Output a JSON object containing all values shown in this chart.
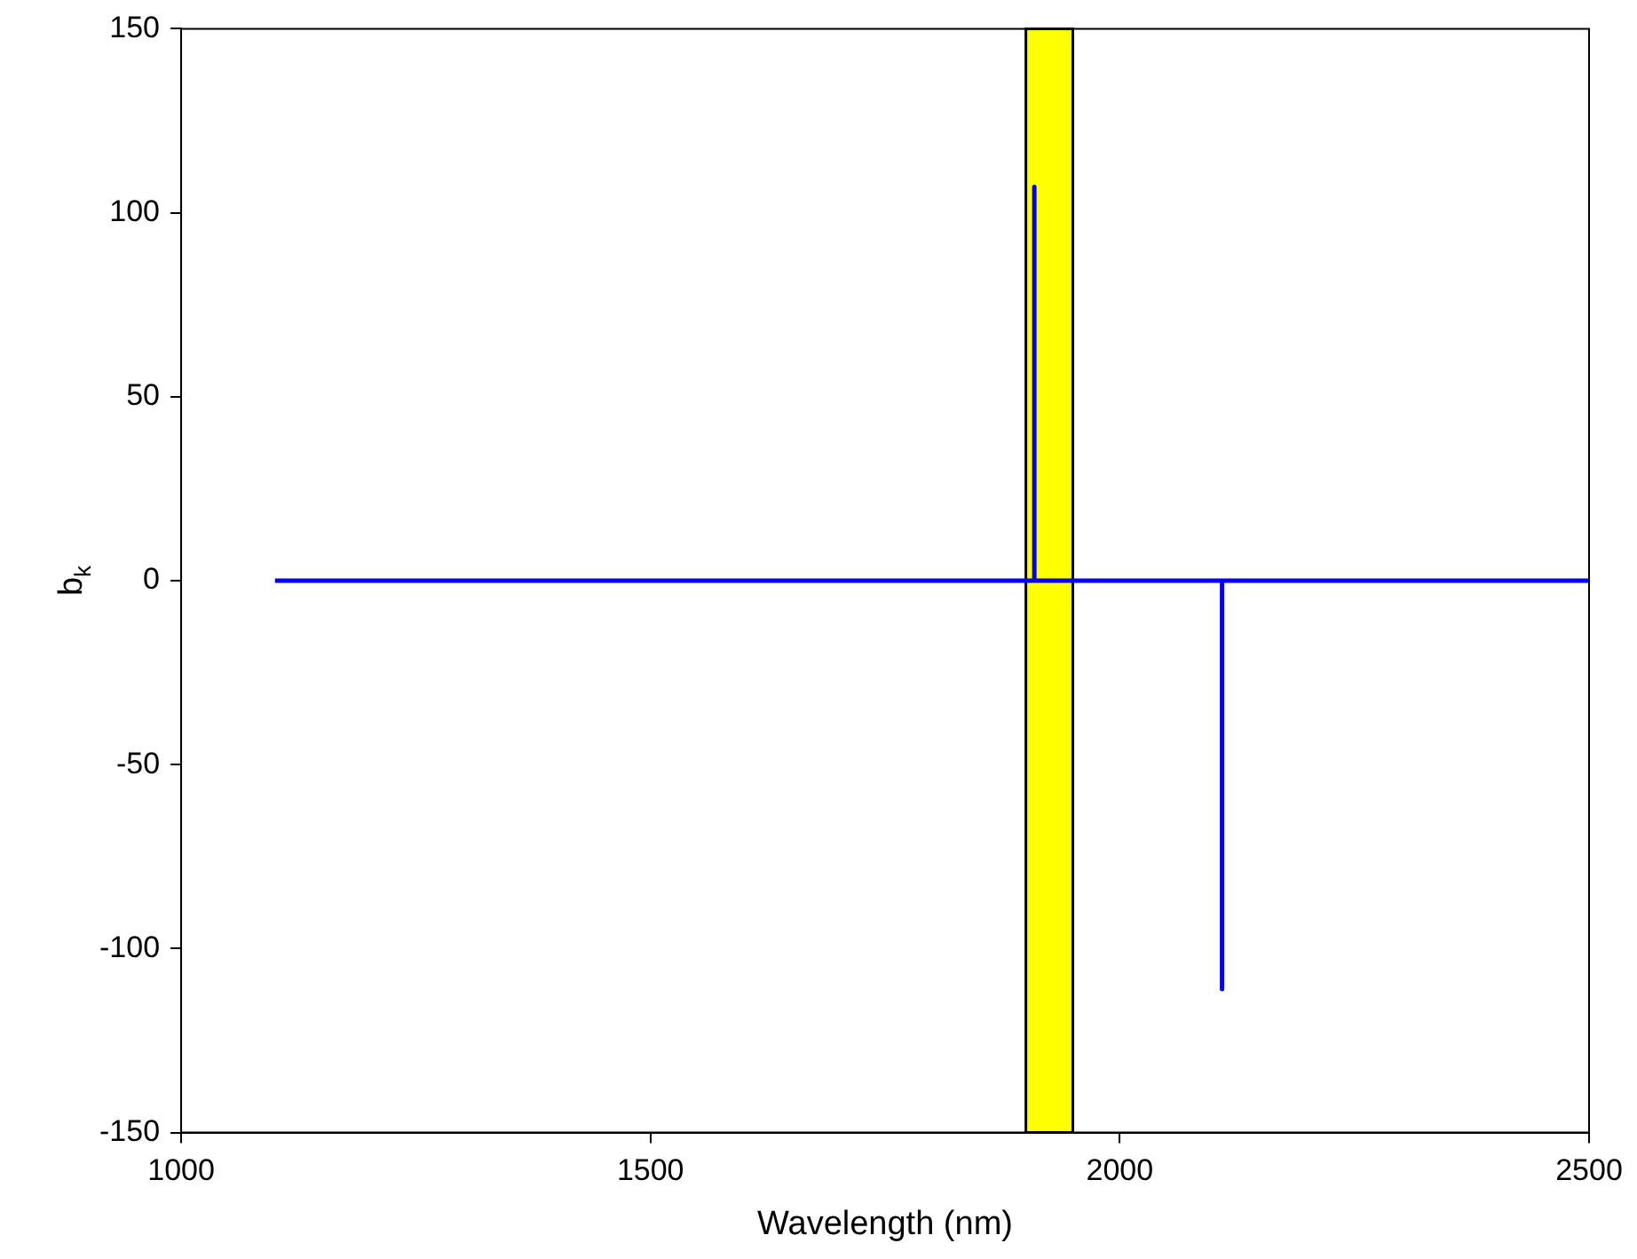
{
  "chart_data": {
    "type": "line",
    "xlabel": "Wavelength (nm)",
    "ylabel": "b$_{k}$",
    "series": [
      {
        "color": "#0000ff",
        "x": [
          1100,
          1909,
          1909,
          1909,
          2109,
          2109,
          2109,
          2500
        ],
        "values": [
          0,
          0,
          107,
          0,
          0,
          -111,
          0,
          0
        ]
      }
    ],
    "xlim": [
      1000,
      2500
    ],
    "xticks": [
      1000,
      1500,
      2000,
      2500
    ],
    "ylim": [
      -150,
      150
    ],
    "yticks": [
      -150,
      -100,
      -50,
      0,
      50,
      100,
      150
    ],
    "bands": [
      {
        "axis": "x",
        "from": 1900,
        "to": 1950,
        "color": "#ffff00"
      }
    ],
    "grid": false,
    "legend": false,
    "marker": "none",
    "line_style": "solid"
  }
}
